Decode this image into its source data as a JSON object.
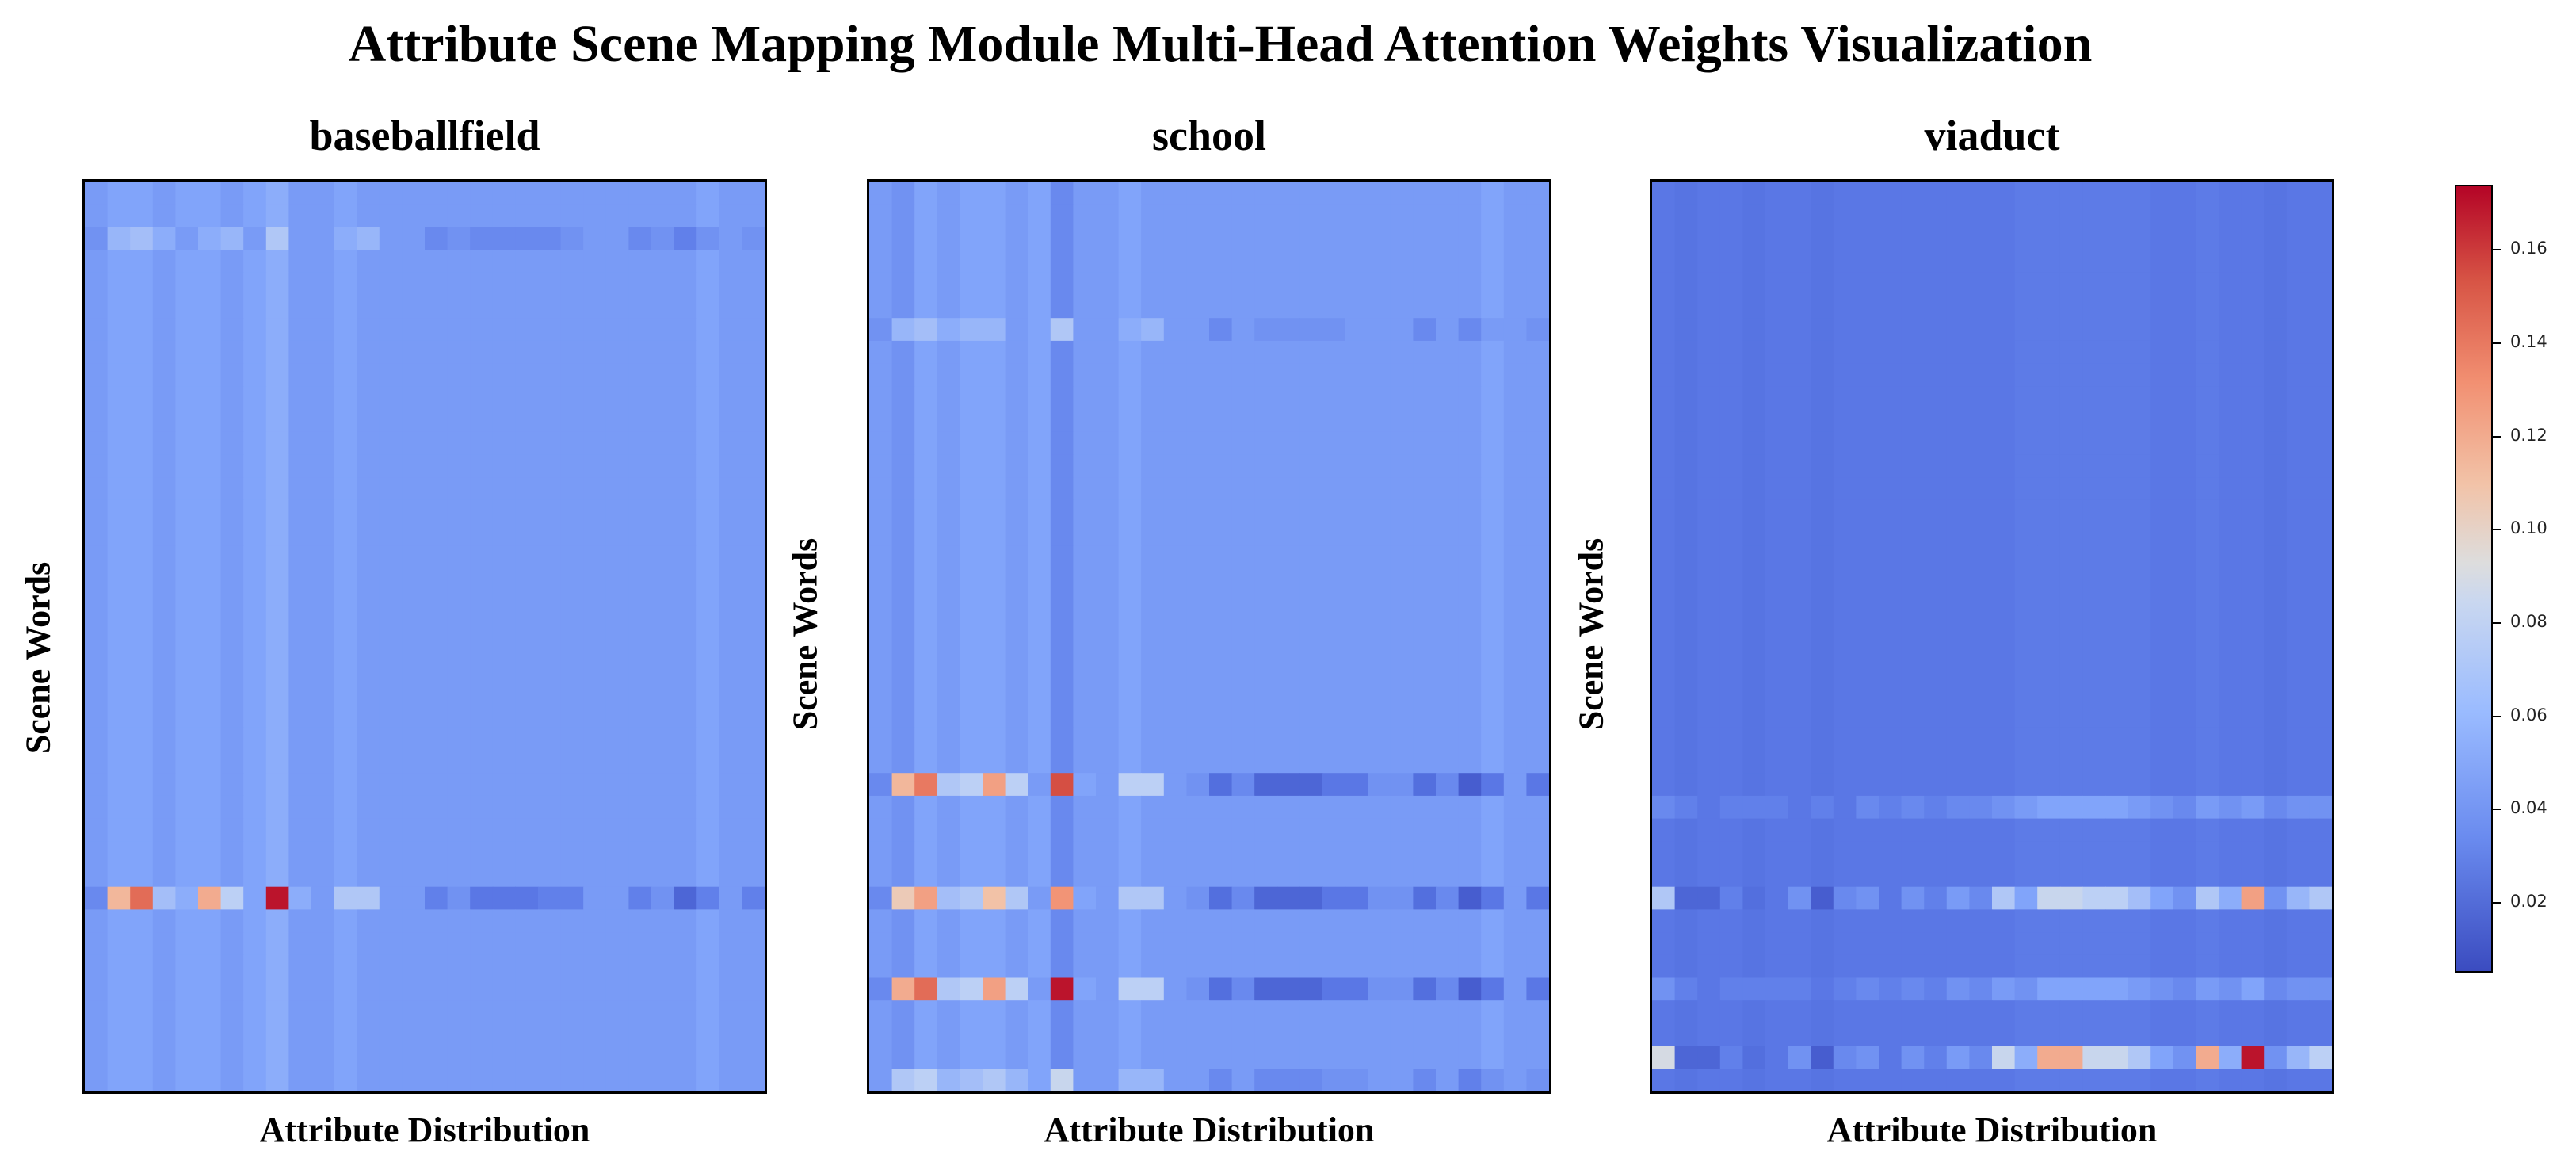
{
  "title": "Attribute Scene Mapping Module Multi-Head Attention Weights Visualization",
  "colorbar": {
    "min": 0.005,
    "max": 0.174,
    "ticks": [
      "0.02",
      "0.04",
      "0.06",
      "0.08",
      "0.10",
      "0.12",
      "0.14",
      "0.16"
    ],
    "colors": [
      "#3b4cc0",
      "#dddddd",
      "#b40426"
    ]
  },
  "chart_data": [
    {
      "type": "heatmap",
      "title": "baseballfield",
      "xlabel": "Attribute Distribution",
      "ylabel": "Scene Words",
      "n_rows": 40,
      "n_cols": 30,
      "background": 0.053,
      "col_base": [
        0.05,
        0.055,
        0.055,
        0.05,
        0.055,
        0.055,
        0.05,
        0.055,
        0.06,
        0.05,
        0.05,
        0.055,
        0.05,
        0.05,
        0.05,
        0.05,
        0.05,
        0.05,
        0.05,
        0.05,
        0.05,
        0.05,
        0.05,
        0.05,
        0.05,
        0.05,
        0.05,
        0.055,
        0.05,
        0.05
      ],
      "row_mod": [
        0.0,
        0.0,
        0.0,
        0.0,
        0.0,
        0.0,
        0.0,
        0.0,
        0.0,
        0.0,
        0.0,
        0.0,
        0.0,
        0.0,
        0.0,
        0.0,
        0.0,
        0.0,
        0.0,
        0.0,
        0.0,
        0.0,
        0.0,
        0.0,
        0.0,
        0.0,
        0.0,
        0.0,
        0.0,
        0.0,
        0.0,
        0.0,
        0.0,
        0.0,
        0.0,
        0.0,
        0.0,
        0.0,
        0.0,
        0.0
      ],
      "special_rows": [
        {
          "row": 2,
          "values": [
            0.045,
            0.065,
            0.07,
            0.06,
            0.05,
            0.06,
            0.065,
            0.05,
            0.075,
            0.05,
            0.05,
            0.06,
            0.065,
            0.05,
            0.05,
            0.04,
            0.045,
            0.04,
            0.04,
            0.04,
            0.04,
            0.045,
            0.05,
            0.05,
            0.04,
            0.045,
            0.035,
            0.045,
            0.05,
            0.045
          ]
        },
        {
          "row": 31,
          "values": [
            0.04,
            0.115,
            0.145,
            0.07,
            0.06,
            0.12,
            0.08,
            0.055,
            0.17,
            0.06,
            0.05,
            0.075,
            0.075,
            0.05,
            0.05,
            0.035,
            0.045,
            0.03,
            0.03,
            0.03,
            0.035,
            0.035,
            0.05,
            0.05,
            0.035,
            0.045,
            0.02,
            0.035,
            0.05,
            0.035
          ]
        }
      ]
    },
    {
      "type": "heatmap",
      "title": "school",
      "xlabel": "Attribute Distribution",
      "ylabel": "Scene Words",
      "n_rows": 40,
      "n_cols": 30,
      "background": 0.05,
      "col_base": [
        0.05,
        0.045,
        0.055,
        0.05,
        0.055,
        0.055,
        0.05,
        0.055,
        0.04,
        0.05,
        0.05,
        0.055,
        0.05,
        0.05,
        0.05,
        0.05,
        0.05,
        0.05,
        0.05,
        0.05,
        0.05,
        0.05,
        0.05,
        0.05,
        0.05,
        0.05,
        0.05,
        0.055,
        0.05,
        0.05
      ],
      "row_mod": [
        0.0,
        0.0,
        0.0,
        0.0,
        0.0,
        0.0,
        0.0,
        0.0,
        0.0,
        0.0,
        0.0,
        0.0,
        0.0,
        0.0,
        0.0,
        0.0,
        0.0,
        0.0,
        0.0,
        0.0,
        0.0,
        0.0,
        0.0,
        0.0,
        0.0,
        0.0,
        0.0,
        0.0,
        0.0,
        0.0,
        0.0,
        0.0,
        0.0,
        0.0,
        0.0,
        0.0,
        0.0,
        0.0,
        0.0,
        0.0
      ],
      "special_rows": [
        {
          "row": 6,
          "values": [
            0.045,
            0.065,
            0.07,
            0.06,
            0.065,
            0.065,
            0.05,
            0.055,
            0.075,
            0.05,
            0.05,
            0.06,
            0.065,
            0.05,
            0.05,
            0.04,
            0.05,
            0.045,
            0.045,
            0.045,
            0.045,
            0.05,
            0.05,
            0.05,
            0.04,
            0.05,
            0.04,
            0.05,
            0.05,
            0.045
          ]
        },
        {
          "row": 26,
          "values": [
            0.04,
            0.115,
            0.14,
            0.075,
            0.08,
            0.125,
            0.08,
            0.05,
            0.155,
            0.055,
            0.05,
            0.08,
            0.08,
            0.05,
            0.045,
            0.025,
            0.04,
            0.02,
            0.02,
            0.02,
            0.03,
            0.03,
            0.045,
            0.045,
            0.025,
            0.04,
            0.015,
            0.03,
            0.05,
            0.03
          ]
        },
        {
          "row": 31,
          "values": [
            0.04,
            0.105,
            0.125,
            0.07,
            0.075,
            0.11,
            0.075,
            0.05,
            0.13,
            0.055,
            0.05,
            0.075,
            0.075,
            0.05,
            0.045,
            0.025,
            0.04,
            0.02,
            0.02,
            0.02,
            0.03,
            0.03,
            0.045,
            0.045,
            0.025,
            0.04,
            0.015,
            0.03,
            0.05,
            0.03
          ]
        },
        {
          "row": 35,
          "values": [
            0.04,
            0.12,
            0.145,
            0.075,
            0.08,
            0.125,
            0.08,
            0.05,
            0.17,
            0.055,
            0.05,
            0.08,
            0.08,
            0.05,
            0.045,
            0.025,
            0.04,
            0.02,
            0.02,
            0.02,
            0.03,
            0.03,
            0.045,
            0.045,
            0.025,
            0.04,
            0.015,
            0.03,
            0.05,
            0.03
          ]
        },
        {
          "row": 39,
          "values": [
            0.05,
            0.075,
            0.08,
            0.065,
            0.07,
            0.075,
            0.065,
            0.055,
            0.085,
            0.05,
            0.05,
            0.065,
            0.065,
            0.05,
            0.05,
            0.04,
            0.05,
            0.04,
            0.04,
            0.04,
            0.045,
            0.045,
            0.05,
            0.05,
            0.04,
            0.05,
            0.035,
            0.045,
            0.05,
            0.045
          ]
        }
      ]
    },
    {
      "type": "heatmap",
      "title": "viaduct",
      "xlabel": "Attribute Distribution",
      "ylabel": "Scene Words",
      "n_rows": 40,
      "n_cols": 30,
      "background": 0.03,
      "col_base": [
        0.03,
        0.028,
        0.03,
        0.03,
        0.028,
        0.03,
        0.03,
        0.028,
        0.03,
        0.03,
        0.03,
        0.03,
        0.03,
        0.03,
        0.03,
        0.03,
        0.032,
        0.032,
        0.032,
        0.032,
        0.032,
        0.032,
        0.03,
        0.03,
        0.032,
        0.03,
        0.03,
        0.028,
        0.03,
        0.03
      ],
      "row_mod": [
        0.0,
        0.0,
        0.0,
        0.0,
        0.0,
        0.0,
        0.0,
        0.0,
        0.0,
        0.0,
        0.0,
        0.0,
        0.0,
        0.0,
        0.0,
        0.0,
        0.0,
        0.0,
        0.0,
        0.0,
        0.0,
        0.0,
        0.0,
        0.0,
        0.0,
        0.0,
        0.0,
        0.0,
        0.0,
        0.0,
        0.0,
        0.0,
        0.0,
        0.0,
        0.0,
        0.0,
        0.0,
        0.0,
        0.0,
        0.0
      ],
      "special_rows": [
        {
          "row": 27,
          "values": [
            0.04,
            0.035,
            0.03,
            0.035,
            0.035,
            0.035,
            0.03,
            0.035,
            0.03,
            0.04,
            0.035,
            0.04,
            0.035,
            0.04,
            0.04,
            0.045,
            0.05,
            0.055,
            0.055,
            0.055,
            0.055,
            0.05,
            0.045,
            0.04,
            0.05,
            0.045,
            0.05,
            0.04,
            0.045,
            0.045
          ]
        },
        {
          "row": 31,
          "values": [
            0.075,
            0.02,
            0.02,
            0.035,
            0.025,
            0.03,
            0.045,
            0.015,
            0.04,
            0.045,
            0.03,
            0.045,
            0.035,
            0.05,
            0.04,
            0.075,
            0.055,
            0.085,
            0.085,
            0.08,
            0.08,
            0.07,
            0.055,
            0.045,
            0.075,
            0.06,
            0.125,
            0.045,
            0.065,
            0.075
          ]
        },
        {
          "row": 35,
          "values": [
            0.045,
            0.035,
            0.03,
            0.035,
            0.035,
            0.035,
            0.035,
            0.03,
            0.035,
            0.04,
            0.035,
            0.04,
            0.035,
            0.045,
            0.04,
            0.05,
            0.045,
            0.055,
            0.055,
            0.055,
            0.055,
            0.05,
            0.045,
            0.04,
            0.05,
            0.045,
            0.055,
            0.04,
            0.045,
            0.045
          ]
        },
        {
          "row": 38,
          "values": [
            0.09,
            0.02,
            0.02,
            0.035,
            0.025,
            0.03,
            0.045,
            0.015,
            0.04,
            0.045,
            0.03,
            0.045,
            0.035,
            0.05,
            0.04,
            0.085,
            0.06,
            0.12,
            0.12,
            0.085,
            0.085,
            0.075,
            0.055,
            0.045,
            0.12,
            0.06,
            0.17,
            0.045,
            0.065,
            0.08
          ]
        }
      ]
    }
  ]
}
